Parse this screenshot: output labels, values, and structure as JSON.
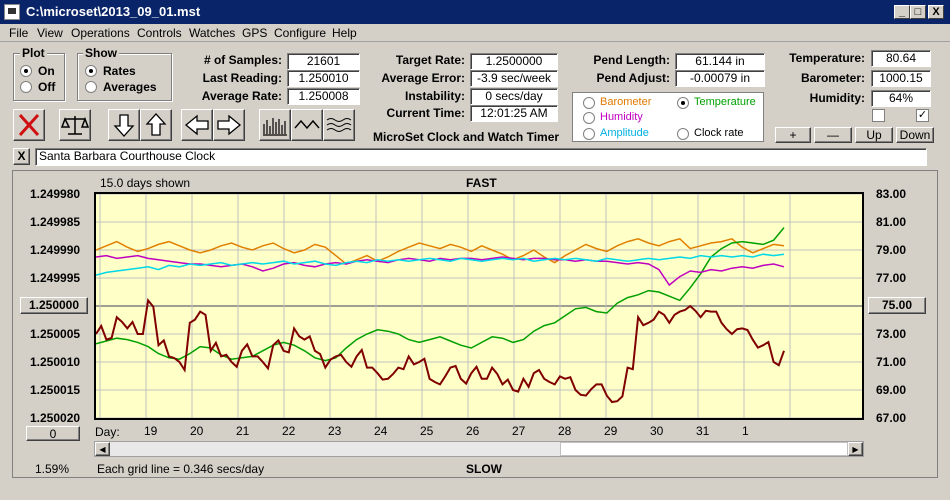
{
  "window": {
    "title": "C:\\microset\\2013_09_01.mst",
    "min": "_",
    "max": "□",
    "close": "X"
  },
  "menu": [
    "File",
    "View",
    "Operations",
    "Controls",
    "Watches",
    "GPS",
    "Configure",
    "Help"
  ],
  "plot_group": {
    "title": "Plot",
    "on": "On",
    "off": "Off"
  },
  "show_group": {
    "title": "Show",
    "rates": "Rates",
    "averages": "Averages"
  },
  "stats": {
    "samples_label": "# of Samples:",
    "samples": "21601",
    "last_reading_label": "Last Reading:",
    "last_reading": "1.250010",
    "average_rate_label": "Average Rate:",
    "average_rate": "1.250008",
    "target_rate_label": "Target Rate:",
    "target_rate": "1.2500000",
    "average_error_label": "Average Error:",
    "average_error": "-3.9 sec/week",
    "instability_label": "Instability:",
    "instability": "0 secs/day",
    "current_time_label": "Current Time:",
    "current_time": "12:01:25 AM",
    "pend_length_label": "Pend Length:",
    "pend_length": "61.144 in",
    "pend_adjust_label": "Pend Adjust:",
    "pend_adjust": "-0.00079 in",
    "temperature_label": "Temperature:",
    "temperature": "80.64",
    "barometer_label": "Barometer:",
    "barometer": "1000.15",
    "humidity_label": "Humidity:",
    "humidity": "64%"
  },
  "app_name": "MicroSet Clock and Watch Timer",
  "aux_options": [
    {
      "label": "Barometer",
      "color": "#e07800"
    },
    {
      "label": "Temperature",
      "color": "#00a000"
    },
    {
      "label": "Humidity",
      "color": "#c000c0"
    },
    {
      "label": "Amplitude",
      "color": "#00b0e0"
    },
    {
      "label": "Clock rate",
      "color": "#000000"
    }
  ],
  "aux_buttons": {
    "plus": "+",
    "minus": "—",
    "up": "Up",
    "down": "Down"
  },
  "toolbar_icons": [
    "close-red-x-icon",
    "balance-scale-icon",
    "arrow-down-icon",
    "arrow-up-icon",
    "arrow-left-icon",
    "arrow-right-icon",
    "bar-graph-icon",
    "wave-icon",
    "multi-wave-icon"
  ],
  "clock_name": "Santa Barbara Courthouse Clock",
  "clear_button": "X",
  "plot": {
    "days_shown": "15.0 days shown",
    "fast": "FAST",
    "slow": "SLOW",
    "center_button": "1.250000",
    "right_button": "75.00",
    "zero_button": "0",
    "day_label": "Day:",
    "percent": "1.59%",
    "grid_note": "Each grid line = 0.346 secs/day"
  },
  "chart_data": {
    "type": "line",
    "left_ticks": [
      "1.249980",
      "1.249985",
      "1.249990",
      "1.249995",
      "1.250000",
      "1.250005",
      "1.250010",
      "1.250015",
      "1.250020"
    ],
    "right_ticks": [
      "83.00",
      "81.00",
      "79.00",
      "77.00",
      "75.00",
      "73.00",
      "71.00",
      "69.00",
      "67.00"
    ],
    "x_ticks": [
      "19",
      "20",
      "21",
      "22",
      "23",
      "24",
      "25",
      "26",
      "27",
      "28",
      "29",
      "30",
      "31",
      "1"
    ],
    "ylim_left": [
      1.24998,
      1.25002
    ],
    "ylim_right": [
      67,
      83
    ],
    "grid": true,
    "series": [
      {
        "name": "Barometer",
        "color": "#e08000",
        "values": [
          79.0,
          79.3,
          79.6,
          79.2,
          78.9,
          79.1,
          79.4,
          79.6,
          79.3,
          79.0,
          78.8,
          79.0,
          79.3,
          79.5,
          79.2,
          79.0,
          79.3,
          79.5,
          79.1,
          78.8,
          79.0,
          79.4,
          79.2,
          78.6,
          78.0,
          78.3,
          78.6,
          78.2,
          78.5,
          78.9,
          79.2,
          79.5,
          79.3,
          79.1,
          79.4,
          79.2,
          78.9,
          79.3,
          79.0,
          78.7,
          78.3,
          78.6,
          79.0,
          78.5,
          78.1,
          78.6,
          79.0,
          79.4,
          79.1,
          78.9,
          79.3,
          79.6,
          79.8,
          79.5,
          79.3,
          79.6,
          79.8,
          79.1,
          79.3,
          79.5,
          79.6,
          79.8,
          79.2,
          78.8,
          79.1,
          79.4,
          79.3
        ]
      },
      {
        "name": "Temperature",
        "color": "#00a000",
        "values": [
          72.3,
          72.5,
          72.7,
          72.6,
          72.4,
          72.1,
          71.6,
          71.3,
          71.2,
          71.6,
          72.1,
          72.0,
          71.5,
          71.2,
          71.3,
          71.4,
          71.8,
          72.2,
          72.4,
          72.2,
          71.8,
          71.3,
          71.1,
          71.3,
          72.0,
          72.6,
          73.0,
          73.3,
          73.2,
          73.0,
          72.6,
          72.4,
          72.6,
          72.8,
          72.5,
          72.2,
          72.0,
          72.4,
          72.8,
          72.7,
          72.4,
          72.6,
          73.2,
          73.6,
          73.8,
          74.3,
          74.8,
          74.9,
          74.6,
          74.5,
          75.2,
          75.6,
          75.8,
          76.1,
          76.0,
          75.7,
          75.4,
          76.3,
          77.3,
          78.5,
          79.1,
          79.5,
          79.6,
          79.5,
          79.4,
          79.7,
          80.6
        ]
      },
      {
        "name": "Humidity",
        "color": "#c000c0",
        "values": [
          78.5,
          78.6,
          78.4,
          78.5,
          78.6,
          78.4,
          78.3,
          78.2,
          78.1,
          78.0,
          78.0,
          77.9,
          77.8,
          77.9,
          78.0,
          77.8,
          77.5,
          77.7,
          78.0,
          78.1,
          77.9,
          77.8,
          78.0,
          78.1,
          78.0,
          78.2,
          78.3,
          78.2,
          78.1,
          78.3,
          78.4,
          78.3,
          78.2,
          78.4,
          78.3,
          78.4,
          78.4,
          78.3,
          78.4,
          78.5,
          78.4,
          78.3,
          78.4,
          78.4,
          78.3,
          78.3,
          78.2,
          78.3,
          78.2,
          78.2,
          78.1,
          78.0,
          78.1,
          78.0,
          77.6,
          76.5,
          77.1,
          77.5,
          77.4,
          77.6,
          77.5,
          77.7,
          77.8,
          77.7,
          77.9,
          78.0,
          77.8
        ]
      },
      {
        "name": "Amplitude",
        "color": "#00d8e8",
        "values": [
          77.2,
          77.4,
          77.5,
          77.6,
          77.7,
          77.8,
          77.6,
          77.9,
          77.8,
          78.0,
          77.9,
          78.0,
          78.1,
          77.9,
          78.0,
          78.1,
          78.0,
          78.1,
          78.2,
          78.0,
          78.1,
          78.2,
          78.0,
          77.9,
          78.1,
          78.2,
          78.1,
          78.3,
          78.2,
          78.3,
          78.2,
          78.3,
          78.4,
          78.3,
          78.2,
          78.4,
          78.3,
          78.2,
          78.3,
          78.4,
          78.3,
          78.4,
          78.2,
          78.3,
          78.4,
          78.3,
          78.4,
          78.3,
          78.2,
          78.4,
          78.3,
          78.2,
          78.3,
          78.4,
          78.3,
          78.4,
          78.5,
          78.4,
          78.6,
          78.5,
          78.6,
          78.5,
          78.6,
          78.5,
          78.7,
          78.6,
          78.7
        ]
      },
      {
        "name": "Clock rate",
        "color": "#800000",
        "values": [
          1.250005,
          1.250006,
          1.250002,
          1.250004,
          1.250005,
          1.249999,
          1.250007,
          1.250009,
          1.25001,
          1.250003,
          1.250001,
          1.250008,
          1.250009,
          1.25001,
          1.250008,
          1.250009,
          1.25001,
          1.250007,
          1.250008,
          1.250004,
          1.250006,
          1.250008,
          1.250011,
          1.250009,
          1.25001,
          1.250009,
          1.250011,
          1.250012,
          1.250013,
          1.250011,
          1.250009,
          1.25001,
          1.250013,
          1.250014,
          1.250011,
          1.250013,
          1.250012,
          1.250013,
          1.250011,
          1.250014,
          1.250015,
          1.250013,
          1.250012,
          1.250013,
          1.250014,
          1.250013,
          1.250015,
          1.250016,
          1.250014,
          1.250016,
          1.250017,
          1.250011,
          1.250002,
          1.250003,
          1.250001,
          1.250003,
          1.250001,
          1.25,
          1.250002,
          1.250001,
          1.250003,
          1.250005,
          1.250004,
          1.250006,
          1.250007,
          1.25001,
          1.250008
        ]
      }
    ]
  }
}
